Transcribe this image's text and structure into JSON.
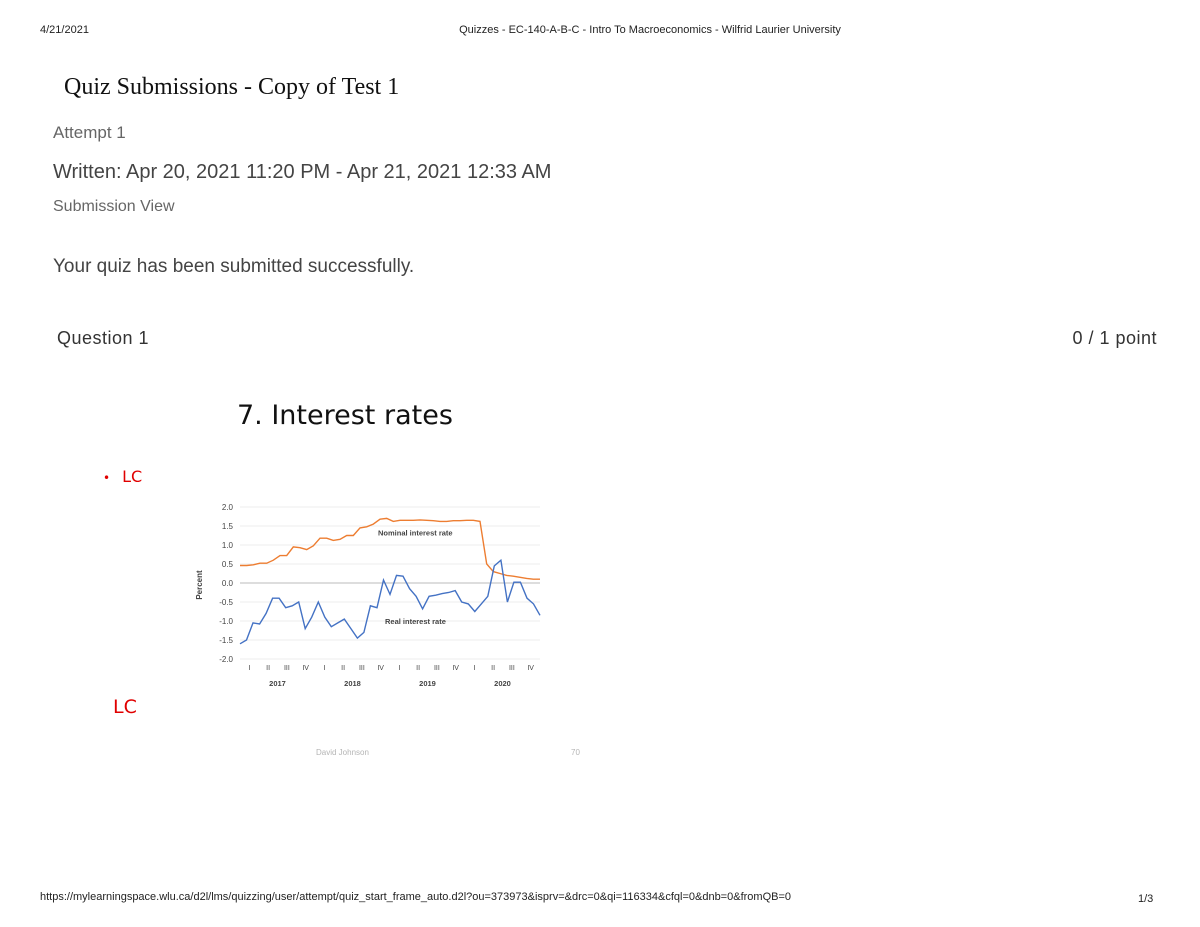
{
  "page_header": {
    "date": "4/21/2021",
    "title": "Quizzes - EC-140-A-B-C - Intro To Macroeconomics - Wilfrid Laurier University"
  },
  "quiz": {
    "title": "Quiz Submissions - Copy of Test 1",
    "attempt": "Attempt 1",
    "written": "Written: Apr 20, 2021 11:20 PM - Apr 21, 2021 12:33 AM",
    "view": "Submission View",
    "success_message": "Your quiz has been submitted successfully."
  },
  "question": {
    "label": "Question 1",
    "score": "0 / 1 point"
  },
  "slide": {
    "title": "7. Interest rates",
    "bullet": "•",
    "bullet_text": "LC",
    "annotation": "LC",
    "author": "David Johnson",
    "page_number": "70"
  },
  "chart_data": {
    "type": "line",
    "ylabel": "Percent",
    "ylim": [
      -2.0,
      2.0
    ],
    "yticks": [
      "2.0",
      "1.5",
      "1.0",
      "0.5",
      "0.0",
      "-0.5",
      "-1.0",
      "-1.5",
      "-2.0"
    ],
    "grid": true,
    "quarter_labels": [
      "I",
      "II",
      "III",
      "IV",
      "I",
      "II",
      "III",
      "IV",
      "I",
      "II",
      "III",
      "IV",
      "I",
      "II",
      "III",
      "IV"
    ],
    "year_labels": [
      "2017",
      "2018",
      "2019",
      "2020"
    ],
    "series": [
      {
        "name": "Nominal interest rate",
        "color": "#ed7d31",
        "values": [
          0.46,
          0.46,
          0.48,
          0.52,
          0.52,
          0.6,
          0.72,
          0.72,
          0.95,
          0.93,
          0.88,
          0.98,
          1.18,
          1.18,
          1.12,
          1.15,
          1.25,
          1.25,
          1.45,
          1.48,
          1.55,
          1.68,
          1.7,
          1.62,
          1.65,
          1.65,
          1.65,
          1.66,
          1.65,
          1.64,
          1.62,
          1.62,
          1.64,
          1.64,
          1.65,
          1.65,
          1.62,
          0.5,
          0.3,
          0.25,
          0.2,
          0.18,
          0.15,
          0.12,
          0.1,
          0.1
        ]
      },
      {
        "name": "Real interest rate",
        "color": "#4472c4",
        "values": [
          -1.6,
          -1.5,
          -1.05,
          -1.08,
          -0.8,
          -0.4,
          -0.4,
          -0.65,
          -0.6,
          -0.5,
          -1.2,
          -0.9,
          -0.5,
          -0.9,
          -1.15,
          -1.05,
          -0.95,
          -1.2,
          -1.45,
          -1.3,
          -0.6,
          -0.65,
          0.08,
          -0.3,
          0.2,
          0.18,
          -0.15,
          -0.35,
          -0.68,
          -0.35,
          -0.32,
          -0.28,
          -0.25,
          -0.2,
          -0.5,
          -0.55,
          -0.75,
          -0.55,
          -0.35,
          0.45,
          0.6,
          -0.5,
          0.02,
          0.02,
          -0.4,
          -0.55,
          -0.85
        ]
      }
    ],
    "annotations": [
      "Nominal interest rate",
      "Real interest rate"
    ]
  },
  "footer": {
    "url": "https://mylearningspace.wlu.ca/d2l/lms/quizzing/user/attempt/quiz_start_frame_auto.d2l?ou=373973&isprv=&drc=0&qi=116334&cfql=0&dnb=0&fromQB=0",
    "page": "1/3"
  }
}
